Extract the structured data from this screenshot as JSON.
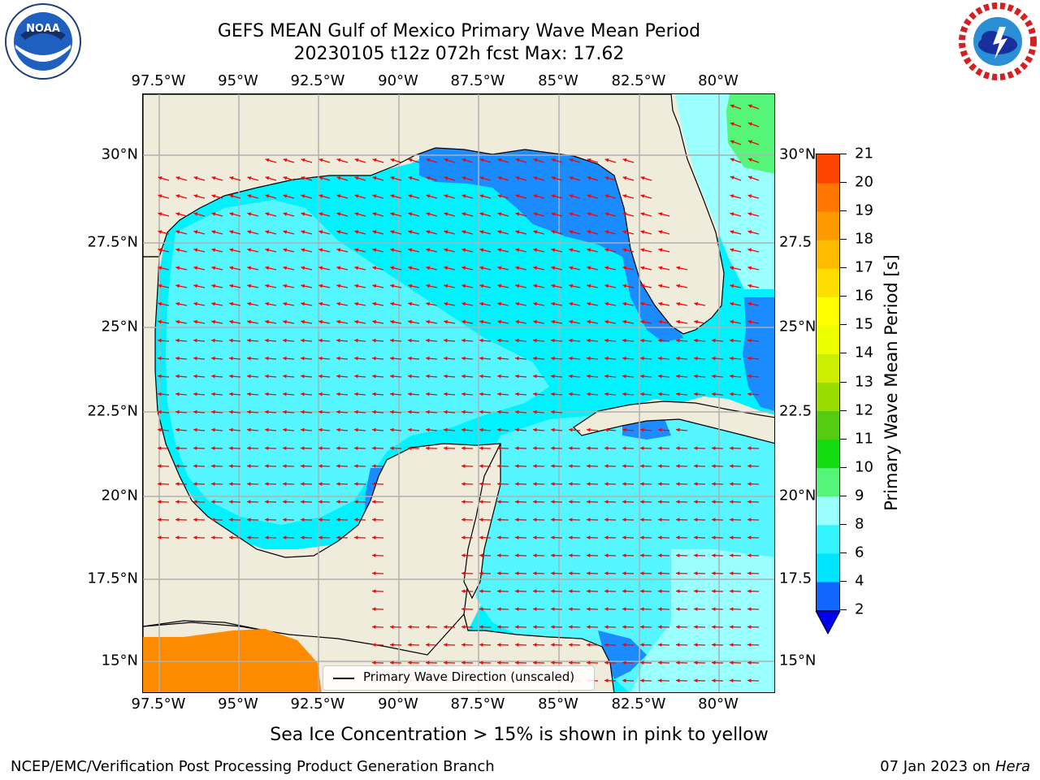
{
  "header": {
    "title_line1": "GEFS MEAN Gulf of Mexico Primary Wave Mean Period",
    "title_line2": "20230105 t12z 072h fcst   Max: 17.62"
  },
  "logos": {
    "left": {
      "name": "noaa-logo",
      "text": "NOAA",
      "ring_text": "NATIONAL OCEANIC AND ATMOSPHERIC ADMINISTRATION · U.S. DEPARTMENT OF COMMERCE"
    },
    "right": {
      "name": "nws-logo",
      "ring_text": "NATIONAL WEATHER SERVICE"
    }
  },
  "map": {
    "lon_labels": [
      "97.5°W",
      "95°W",
      "92.5°W",
      "90°W",
      "87.5°W",
      "85°W",
      "82.5°W",
      "80°W"
    ],
    "lat_labels_left": [
      "30°N",
      "27.5°N",
      "25°N",
      "22.5°N",
      "20°N",
      "17.5°N",
      "15°N"
    ],
    "lat_labels_right": [
      "30°N",
      "27.5",
      "25°N",
      "22.5",
      "20°N",
      "17.5",
      "15°N"
    ],
    "legend_label": "Primary Wave Direction (unscaled)",
    "arrow_color": "#ff0000",
    "land_color": "#efecdc",
    "grid_color": "#b0b0b0"
  },
  "colorbar": {
    "label": "Primary Wave Mean Period [s]",
    "ticks": [
      "2",
      "4",
      "6",
      "8",
      "9",
      "10",
      "11",
      "12",
      "13",
      "14",
      "15",
      "16",
      "17",
      "18",
      "19",
      "20",
      "21"
    ],
    "colors": [
      "#1166ff",
      "#00e5ff",
      "#33f5ff",
      "#99ffff",
      "#55f57a",
      "#11dd11",
      "#55cc11",
      "#99dd00",
      "#ccee00",
      "#eeff00",
      "#ffff00",
      "#ffee00",
      "#ffcc00",
      "#ffaa00",
      "#ff8800",
      "#ff5500",
      "#ff2200",
      "#ff0000"
    ],
    "extend_color": "#0000ee"
  },
  "chart_data": {
    "type": "heatmap",
    "title": "GEFS MEAN Gulf of Mexico Primary Wave Mean Period",
    "subtitle": "20230105 t12z 072h fcst   Max: 17.62",
    "variable": "Primary Wave Mean Period [s]",
    "lon_range": [
      -98,
      -78.2
    ],
    "lat_range": [
      14.0,
      31.8
    ],
    "max": 17.62,
    "levels": [
      2,
      4,
      6,
      8,
      9,
      10,
      11,
      12,
      13,
      14,
      15,
      16,
      17,
      18,
      19,
      20,
      21
    ]
  },
  "captions": {
    "sea_ice": "Sea Ice Concentration > 15% is shown in pink to yellow",
    "footer_left": "NCEP/EMC/Verification Post Processing Product Generation Branch",
    "footer_date": "07 Jan 2023 on ",
    "footer_host": "Hera"
  }
}
